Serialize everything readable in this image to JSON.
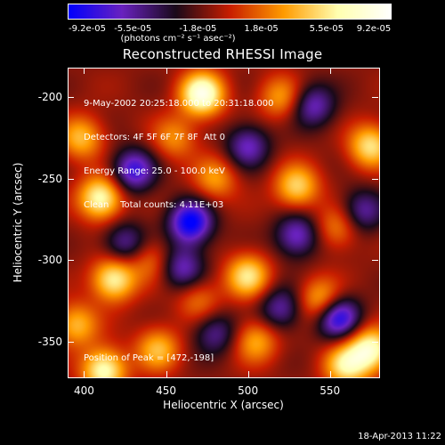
{
  "chart_data": {
    "type": "heatmap",
    "title": "Reconstructed RHESSI Image",
    "xlabel": "Heliocentric X (arcsec)",
    "ylabel": "Heliocentric Y (arcsec)",
    "xlim": [
      390,
      580
    ],
    "ylim": [
      -372,
      -182
    ],
    "x_ticks": [
      "400",
      "450",
      "500",
      "550"
    ],
    "x_tick_values": [
      400,
      450,
      500,
      550
    ],
    "y_ticks": [
      "-200",
      "-250",
      "-300",
      "-350"
    ],
    "y_tick_values": [
      -200,
      -250,
      -300,
      -350
    ],
    "colorbar": {
      "ticks": [
        "-9.2e-05",
        "-5.5e-05",
        "-1.8e-05",
        "1.8e-05",
        "5.5e-05",
        "9.2e-05"
      ],
      "tick_values": [
        -9.2e-05,
        -5.5e-05,
        -1.8e-05,
        1.8e-05,
        5.5e-05,
        9.2e-05
      ],
      "range": [
        -9.2e-05,
        9.2e-05
      ],
      "units_line": "(photons cm⁻² s⁻¹ asec⁻²)",
      "colormap": [
        "#0000ff",
        "#6a22c0",
        "#1a0a1a",
        "#c81e00",
        "#ff9b00",
        "#ffffb0",
        "#ffffff"
      ]
    },
    "annotations": [
      "9-May-2002 20:25:18.000 to 20:31:18.000",
      "Detectors: 4F 5F 6F 7F 8F  Att 0",
      "Energy Range: 25.0 - 100.0 keV",
      "Clean    Total counts: 4.11E+03"
    ],
    "peak_label": "Position of Peak = [472,-198]",
    "peak_position": [
      472,
      -198
    ],
    "hotspots": [
      {
        "x": 472,
        "y": -198,
        "v": 1.0
      },
      {
        "x": 410,
        "y": -262,
        "v": 0.85
      },
      {
        "x": 418,
        "y": -312,
        "v": 0.8
      },
      {
        "x": 412,
        "y": -368,
        "v": 0.85
      },
      {
        "x": 398,
        "y": -225,
        "v": 0.55
      },
      {
        "x": 500,
        "y": -310,
        "v": 0.7
      },
      {
        "x": 530,
        "y": -255,
        "v": 0.65
      },
      {
        "x": 545,
        "y": -325,
        "v": 0.6
      },
      {
        "x": 575,
        "y": -230,
        "v": 0.7
      },
      {
        "x": 575,
        "y": -355,
        "v": 0.85
      },
      {
        "x": 560,
        "y": -365,
        "v": 0.7
      },
      {
        "x": 445,
        "y": -355,
        "v": 0.55
      },
      {
        "x": 480,
        "y": -250,
        "v": 0.45
      },
      {
        "x": 520,
        "y": -200,
        "v": 0.45
      },
      {
        "x": 455,
        "y": -225,
        "v": 0.4
      },
      {
        "x": 505,
        "y": -350,
        "v": 0.5
      },
      {
        "x": 440,
        "y": -300,
        "v": 0.35
      },
      {
        "x": 555,
        "y": -280,
        "v": 0.4
      },
      {
        "x": 395,
        "y": -340,
        "v": 0.55
      },
      {
        "x": 470,
        "y": -325,
        "v": 0.35
      }
    ],
    "coldspots": [
      {
        "x": 465,
        "y": -277,
        "v": -0.9
      },
      {
        "x": 430,
        "y": -245,
        "v": -0.7
      },
      {
        "x": 555,
        "y": -335,
        "v": -0.85
      },
      {
        "x": 530,
        "y": -285,
        "v": -0.6
      },
      {
        "x": 500,
        "y": -230,
        "v": -0.55
      },
      {
        "x": 540,
        "y": -205,
        "v": -0.55
      },
      {
        "x": 570,
        "y": -270,
        "v": -0.5
      },
      {
        "x": 460,
        "y": -305,
        "v": -0.55
      },
      {
        "x": 425,
        "y": -290,
        "v": -0.5
      },
      {
        "x": 480,
        "y": -345,
        "v": -0.45
      },
      {
        "x": 520,
        "y": -330,
        "v": -0.5
      }
    ]
  },
  "timestamp": "18-Apr-2013 11:22"
}
